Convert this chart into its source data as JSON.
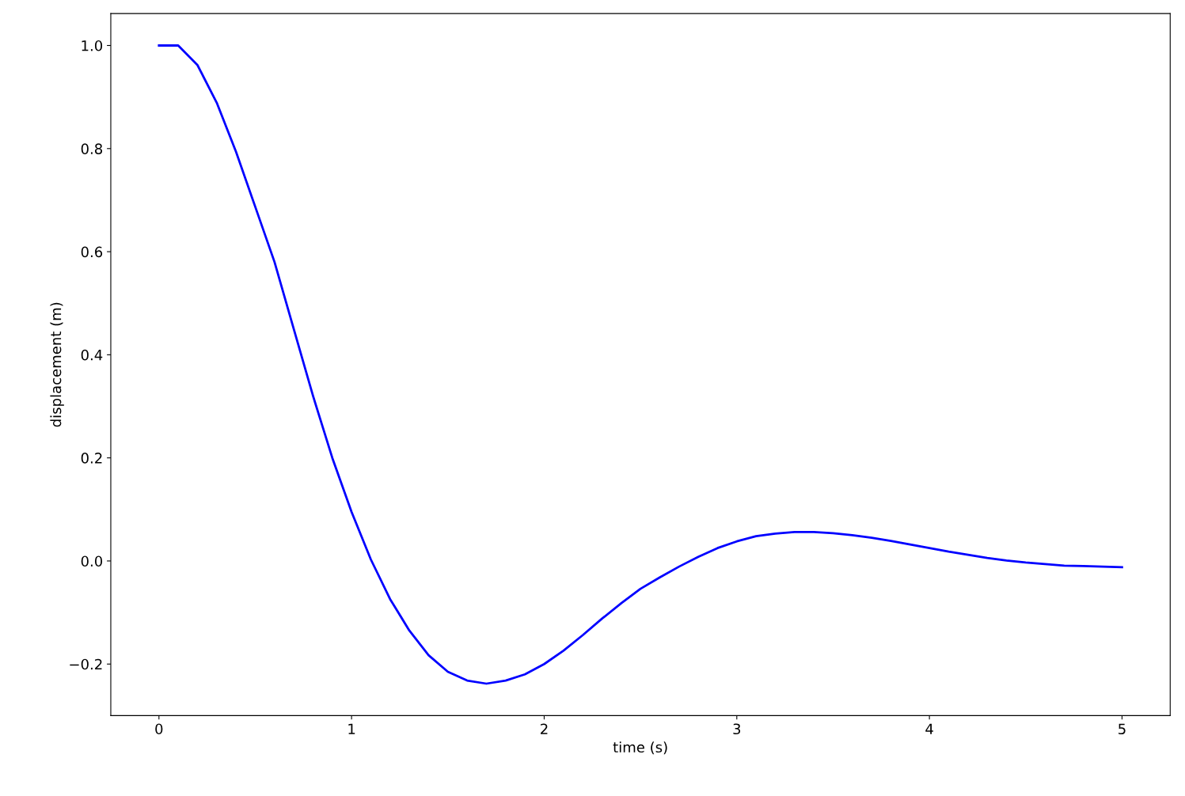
{
  "chart_data": {
    "type": "line",
    "xlabel": "time (s)",
    "ylabel": "displacement (m)",
    "series": [
      {
        "color": "#0000ff",
        "x": [
          0,
          0.1,
          0.2,
          0.3,
          0.4,
          0.5,
          0.6,
          0.7,
          0.8,
          0.9,
          1.0,
          1.1,
          1.2,
          1.3,
          1.4,
          1.5,
          1.6,
          1.7,
          1.8,
          1.9,
          2.0,
          2.1,
          2.2,
          2.3,
          2.4,
          2.5,
          2.6,
          2.7,
          2.8,
          2.9,
          3.0,
          3.1,
          3.2,
          3.3,
          3.4,
          3.5,
          3.6,
          3.7,
          3.8,
          3.9,
          4.0,
          4.1,
          4.2,
          4.3,
          4.4,
          4.5,
          4.6,
          4.7,
          4.8,
          4.9,
          5.0
        ],
        "values": [
          1.0,
          1.0,
          0.962,
          0.889,
          0.794,
          0.687,
          0.58,
          0.45,
          0.32,
          0.2,
          0.095,
          0.003,
          -0.074,
          -0.135,
          -0.183,
          -0.215,
          -0.232,
          -0.238,
          -0.232,
          -0.22,
          -0.2,
          -0.174,
          -0.144,
          -0.112,
          -0.082,
          -0.054,
          -0.032,
          -0.011,
          0.008,
          0.025,
          0.038,
          0.048,
          0.053,
          0.056,
          0.056,
          0.054,
          0.05,
          0.045,
          0.039,
          0.032,
          0.025,
          0.018,
          0.012,
          0.006,
          0.001,
          -0.003,
          -0.006,
          -0.009,
          -0.01,
          -0.011,
          -0.012
        ]
      }
    ],
    "xlim": [
      -0.25,
      5.25
    ],
    "ylim": [
      -0.3,
      1.062
    ],
    "xticks": [
      0,
      1,
      2,
      3,
      4,
      5
    ],
    "yticks": [
      {
        "value": -0.2,
        "label": "−0.2"
      },
      {
        "value": 0.0,
        "label": "0.0"
      },
      {
        "value": 0.2,
        "label": "0.2"
      },
      {
        "value": 0.4,
        "label": "0.4"
      },
      {
        "value": 0.6,
        "label": "0.6"
      },
      {
        "value": 0.8,
        "label": "0.8"
      },
      {
        "value": 1.0,
        "label": "1.0"
      }
    ],
    "grid": false,
    "legend": false
  }
}
